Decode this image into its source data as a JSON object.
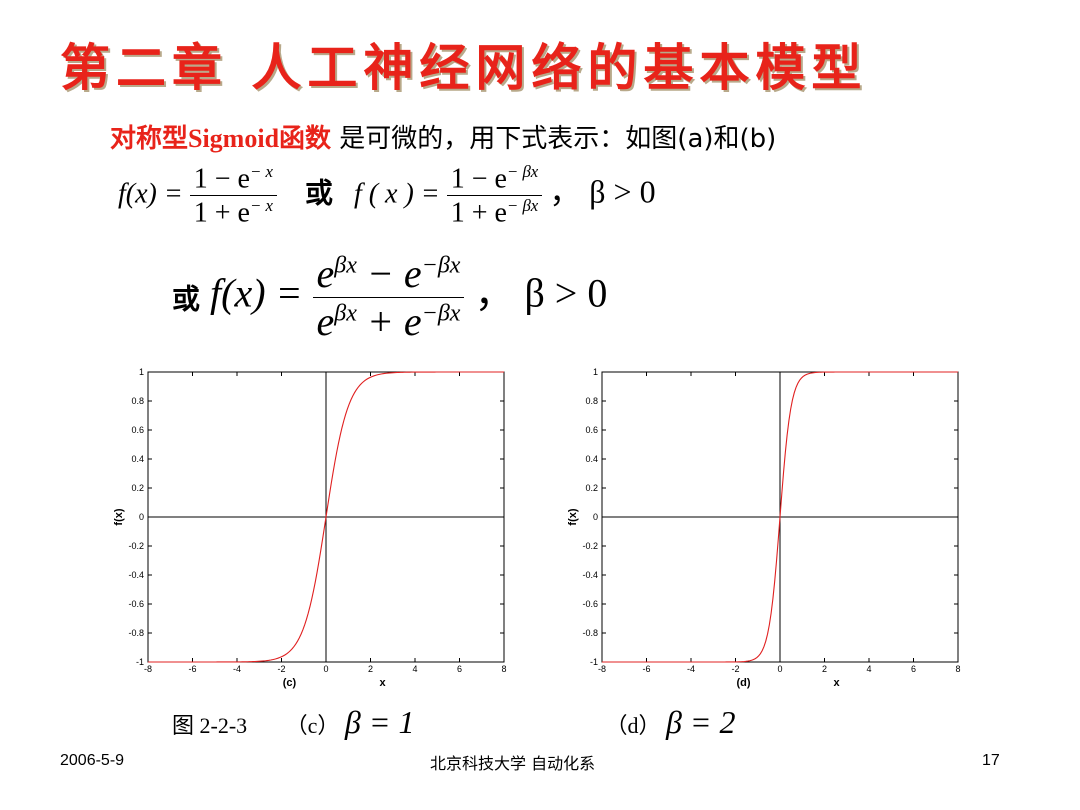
{
  "title": "第二章 人工神经网络的基本模型",
  "subtitle": {
    "red": "对称型Sigmoid函数",
    "black": "是可微的，用下式表示：如图(a)和(b)"
  },
  "formula1": {
    "lhs": "f(x) =",
    "num": "1 − e",
    "num_exp": "− x",
    "den": "1 + e",
    "den_exp": "− x",
    "or": "或",
    "lhs2": "f ( x ) =",
    "num2": "1 − e",
    "num2_exp": "− βx",
    "den2": "1 + e",
    "den2_exp": "− βx",
    "cond": "，  β > 0"
  },
  "formula2": {
    "or": "或",
    "lhs": "f(x) =",
    "num_a": "e",
    "num_a_exp": "βx",
    "num_b": " − e",
    "num_b_exp": "−βx",
    "den_a": "e",
    "den_a_exp": "βx",
    "den_b": " + e",
    "den_b_exp": "−βx",
    "cond": "，  β > 0"
  },
  "chart_data": [
    {
      "type": "line",
      "label": "(c)",
      "xlabel": "x",
      "ylabel": "f(x)",
      "xlim": [
        -8,
        8
      ],
      "ylim": [
        -1,
        1
      ],
      "xticks": [
        -8,
        -6,
        -4,
        -2,
        0,
        2,
        4,
        6,
        8
      ],
      "yticks": [
        -1,
        -0.8,
        -0.6,
        -0.4,
        -0.2,
        0,
        0.2,
        0.4,
        0.6,
        0.8,
        1
      ],
      "beta": 1,
      "function": "tanh(beta*x)",
      "line_color": "#e02020",
      "grid": false
    },
    {
      "type": "line",
      "label": "(d)",
      "xlabel": "x",
      "ylabel": "f(x)",
      "xlim": [
        -8,
        8
      ],
      "ylim": [
        -1,
        1
      ],
      "xticks": [
        -8,
        -6,
        -4,
        -2,
        0,
        2,
        4,
        6,
        8
      ],
      "yticks": [
        -1,
        -0.8,
        -0.6,
        -0.4,
        -0.2,
        0,
        0.2,
        0.4,
        0.6,
        0.8,
        1
      ],
      "beta": 2,
      "function": "tanh(beta*x)",
      "line_color": "#e02020",
      "grid": false
    }
  ],
  "caption": {
    "fig": "图 2-2-3",
    "c": "（c）",
    "c_eq": "β = 1",
    "d": "（d）",
    "d_eq": "β = 2"
  },
  "footer": {
    "date": "2006-5-9",
    "org": "北京科技大学 自动化系",
    "page": "17"
  },
  "colors": {
    "title": "#e8231a",
    "curve": "#e02020"
  }
}
